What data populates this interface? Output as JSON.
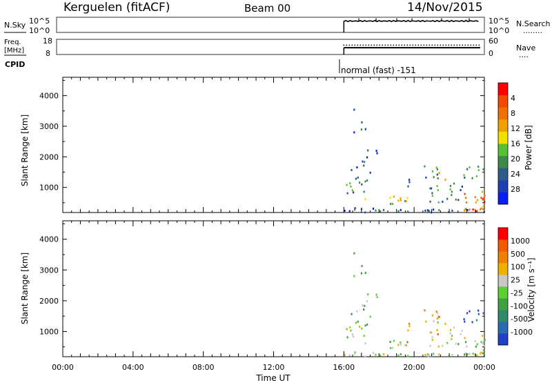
{
  "header": {
    "station": "Kerguelen (fitACF)",
    "beam": "Beam 00",
    "date": "14/Nov/2015"
  },
  "sky_panel": {
    "left_label": "N.Sky",
    "left_ticks": [
      "10^5",
      "10^0"
    ],
    "right_ticks": [
      "10^5",
      "10^0"
    ],
    "right_label": "N.Search",
    "right_dots": "........",
    "series": [
      {
        "name": "N.Sky",
        "data_start": "16:00",
        "level": 0.75
      }
    ]
  },
  "freq_panel": {
    "left_label_top": "Freq.",
    "left_label_bottom": "[MHz]",
    "left_ticks": [
      "18",
      "8"
    ],
    "right_ticks": [
      "60",
      "0"
    ],
    "right_label": "Nave",
    "right_dots": "....",
    "series": [
      {
        "name": "Nave",
        "style": "dotted",
        "level": 0.62
      },
      {
        "name": "Freq.",
        "style": "solid",
        "level": 0.45
      }
    ]
  },
  "cpid": {
    "label": "CPID",
    "program_text": "normal (fast) -151",
    "start": "16:00"
  },
  "chart_data": [
    {
      "type": "heatmap",
      "title": "",
      "xlabel": "",
      "ylabel": "Slant Range [km]",
      "x_range": [
        "00:00",
        "00:00"
      ],
      "ylim": [
        180,
        4600
      ],
      "yticks": [
        "1000",
        "2000",
        "3000",
        "4000"
      ],
      "colorbar": {
        "label": "Power [dB]",
        "ticks": [
          "4",
          "8",
          "12",
          "16",
          "20",
          "24",
          "28"
        ],
        "colors": [
          "#0a1ef0",
          "#1d3fb4",
          "#2f5b8a",
          "#3c8a4a",
          "#58c030",
          "#f0e000",
          "#f0a000",
          "#f07000",
          "#f04a00",
          "#ff0000"
        ]
      }
    },
    {
      "type": "heatmap",
      "title": "",
      "xlabel": "Time UT",
      "ylabel": "Slant Range [km]",
      "x_range": [
        "00:00",
        "00:00"
      ],
      "xticks": [
        "00:00",
        "04:00",
        "08:00",
        "12:00",
        "16:00",
        "20:00",
        "00:00"
      ],
      "ylim": [
        180,
        4600
      ],
      "yticks": [
        "1000",
        "2000",
        "3000",
        "4000"
      ],
      "colorbar": {
        "label": "Velocity [m s⁻¹]",
        "ticks": [
          "1000",
          "500",
          "100",
          "25",
          "-25",
          "-100",
          "-500",
          "-1000"
        ],
        "colors": [
          "#2040c8",
          "#2a6ab0",
          "#2f8a6a",
          "#40a040",
          "#5bd030",
          "#c8c8c8",
          "#f0b000",
          "#f08000",
          "#f05a00",
          "#ff0000"
        ]
      }
    }
  ]
}
